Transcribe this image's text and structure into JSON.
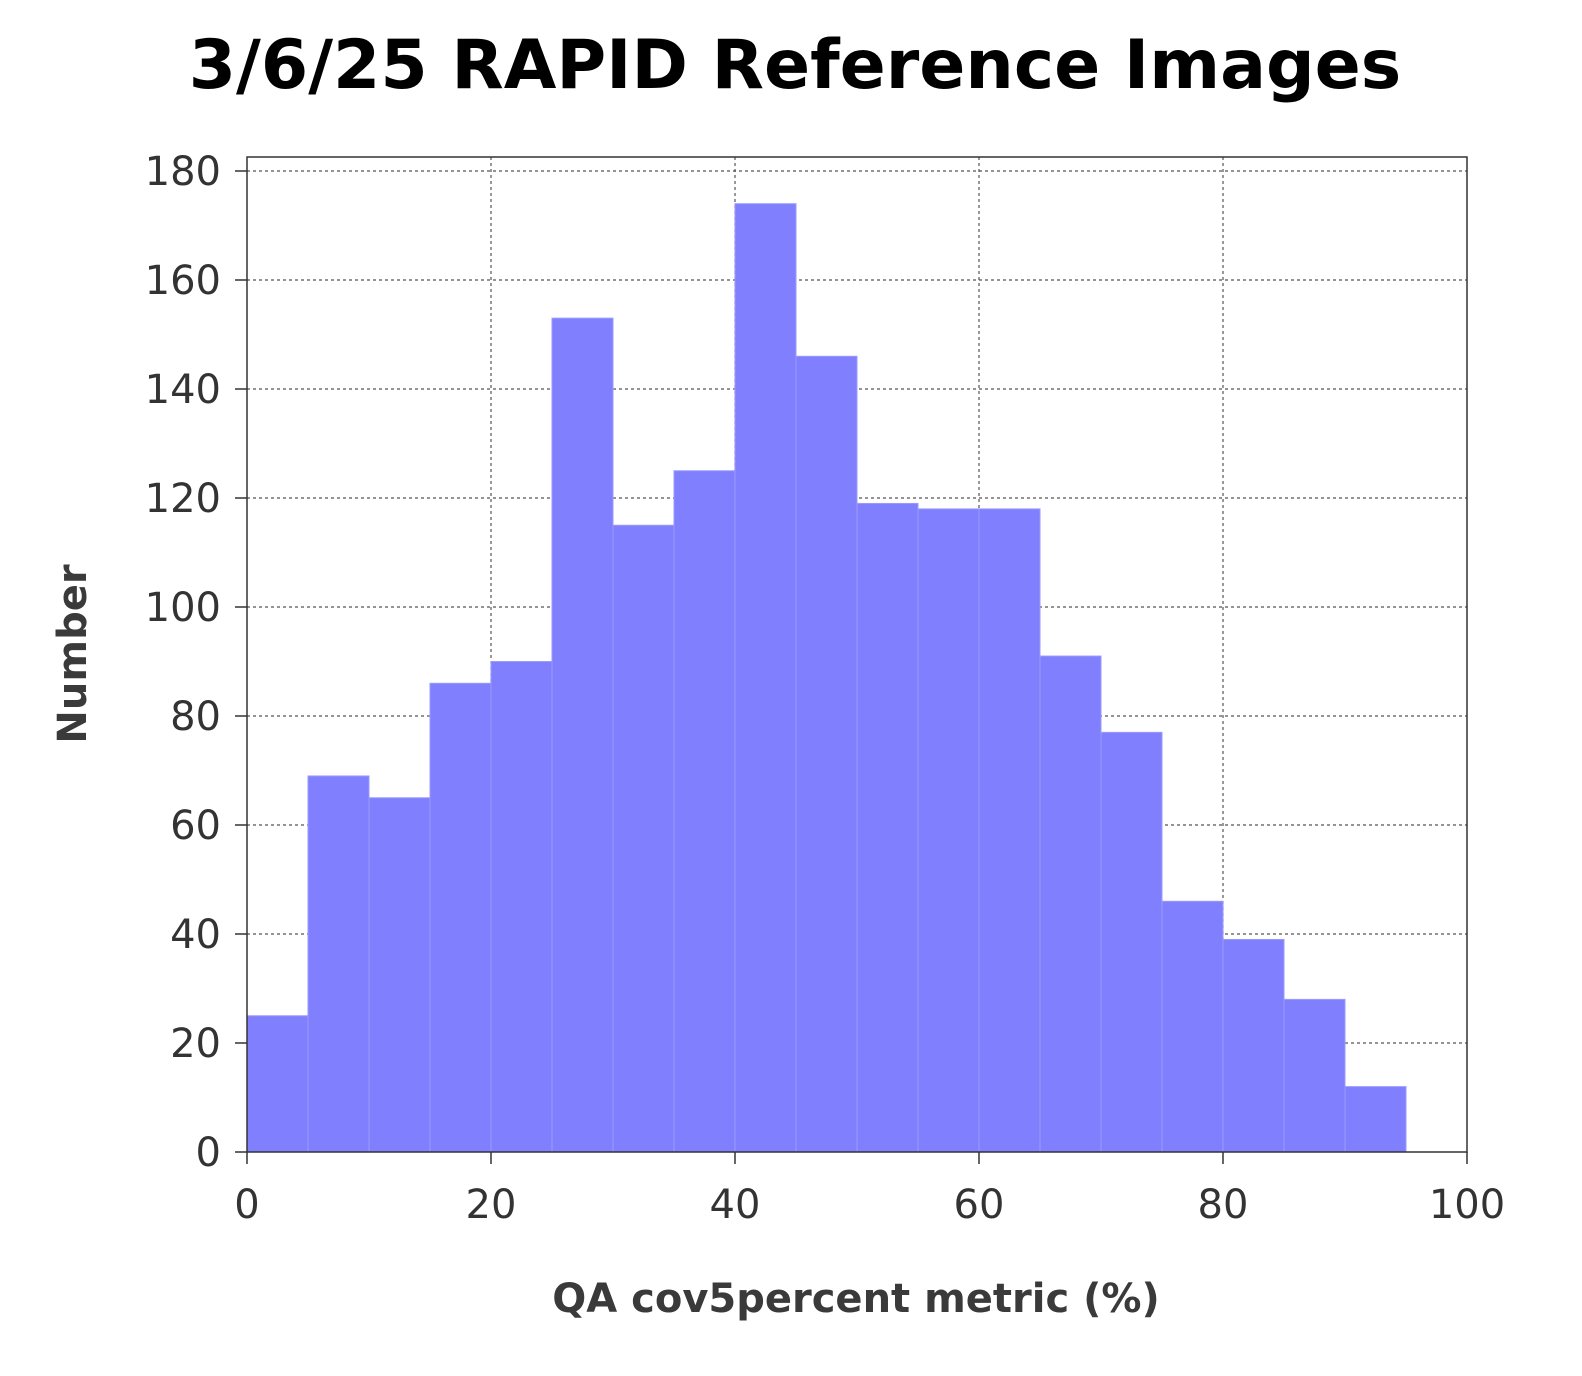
{
  "chart_data": {
    "type": "bar",
    "title": "3/6/25 RAPID Reference Images",
    "xlabel": "QA cov5percent metric (%)",
    "ylabel": "Number",
    "xlim": [
      0,
      100
    ],
    "ylim": [
      0,
      180
    ],
    "grid": true,
    "bin_width": 5,
    "x_ticks": [
      0,
      20,
      40,
      60,
      80,
      100
    ],
    "y_ticks": [
      0,
      20,
      40,
      60,
      80,
      100,
      120,
      140,
      160,
      180
    ],
    "bins": [
      {
        "x_start": 0,
        "x_end": 5,
        "value": 25
      },
      {
        "x_start": 5,
        "x_end": 10,
        "value": 69
      },
      {
        "x_start": 10,
        "x_end": 15,
        "value": 65
      },
      {
        "x_start": 15,
        "x_end": 20,
        "value": 86
      },
      {
        "x_start": 20,
        "x_end": 25,
        "value": 90
      },
      {
        "x_start": 25,
        "x_end": 30,
        "value": 153
      },
      {
        "x_start": 30,
        "x_end": 35,
        "value": 115
      },
      {
        "x_start": 35,
        "x_end": 40,
        "value": 125
      },
      {
        "x_start": 40,
        "x_end": 45,
        "value": 174
      },
      {
        "x_start": 45,
        "x_end": 50,
        "value": 146
      },
      {
        "x_start": 50,
        "x_end": 55,
        "value": 119
      },
      {
        "x_start": 55,
        "x_end": 60,
        "value": 118
      },
      {
        "x_start": 60,
        "x_end": 65,
        "value": 118
      },
      {
        "x_start": 65,
        "x_end": 70,
        "value": 91
      },
      {
        "x_start": 70,
        "x_end": 75,
        "value": 77
      },
      {
        "x_start": 75,
        "x_end": 80,
        "value": 46
      },
      {
        "x_start": 80,
        "x_end": 85,
        "value": 39
      },
      {
        "x_start": 85,
        "x_end": 90,
        "value": 28
      },
      {
        "x_start": 90,
        "x_end": 95,
        "value": 12
      }
    ],
    "bar_color": "#8080ff",
    "bar_edge_color": "#9a9aff",
    "axis_color": "#333333",
    "grid_color": "#555555"
  }
}
